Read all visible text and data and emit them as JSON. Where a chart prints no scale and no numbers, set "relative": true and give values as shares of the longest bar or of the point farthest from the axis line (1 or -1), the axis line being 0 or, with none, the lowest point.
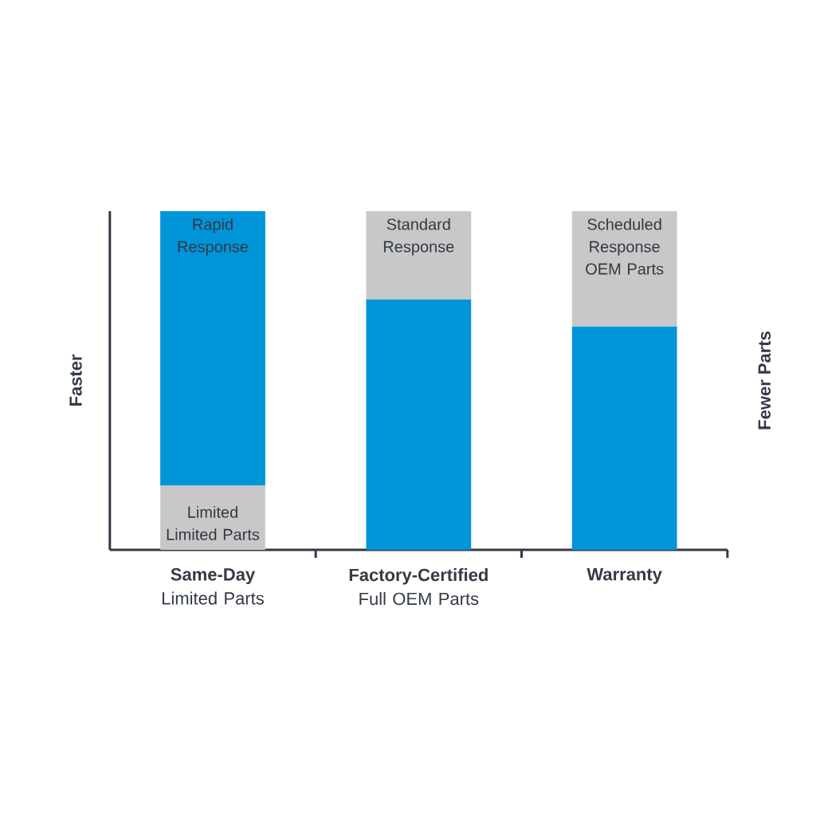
{
  "chart_data": {
    "type": "bar",
    "stacked": true,
    "relative": true,
    "categories": [
      "**Same-Day** Limited Parts",
      "**Factory-Certified** Full OEM Parts",
      "**Warranty**"
    ],
    "ylabel": "Faster",
    "y2label": "Fewer Parts",
    "series": [
      {
        "color": "#c8c8c8",
        "values": [
          0.19,
          null,
          null
        ]
      },
      {
        "color": "#0095d9",
        "values": [
          0.81,
          0.74,
          0.66
        ]
      },
      {
        "color": "#c8c8c8",
        "values": [
          null,
          0.26,
          0.34
        ]
      }
    ],
    "annotations": [
      "Rapid Response",
      "Limited Limited Parts",
      "Standard Response",
      "Scheduled Response OEM Parts"
    ]
  }
}
